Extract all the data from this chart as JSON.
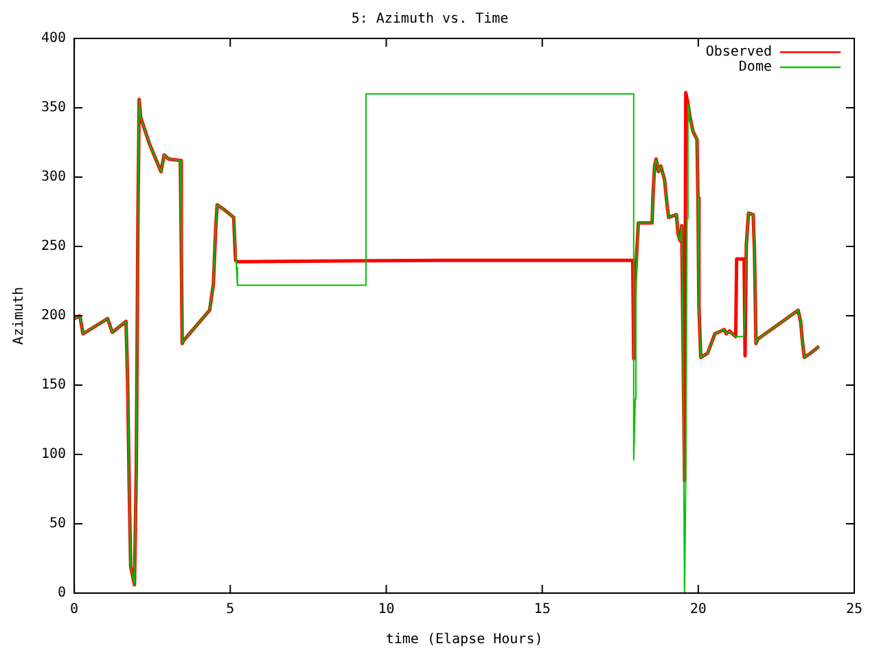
{
  "chart_data": {
    "type": "line",
    "title": "5: Azimuth vs. Time",
    "xlabel": "time (Elapse Hours)",
    "ylabel": "Azimuth",
    "xlim": [
      0,
      25
    ],
    "xticks": [
      0,
      5,
      10,
      15,
      20,
      25
    ],
    "ylim": [
      0,
      400
    ],
    "yticks": [
      0,
      50,
      100,
      150,
      200,
      250,
      300,
      350,
      400
    ],
    "grid": false,
    "legend": "top right",
    "marker": "none",
    "line_style": "solid",
    "series": [
      {
        "name": "Observed",
        "color": "#ff0000",
        "x": [
          0,
          0.18,
          0.28,
          1.07,
          1.22,
          1.66,
          1.71,
          1.77,
          1.81,
          1.93,
          1.99,
          2.04,
          2.08,
          2.13,
          2.41,
          2.78,
          2.88,
          3.03,
          3.4,
          3.43,
          3.46,
          3.5,
          4.34,
          4.46,
          4.53,
          4.58,
          4.78,
          5.11,
          5.17,
          5.23,
          11.8,
          17.9,
          17.93,
          17.98,
          18.08,
          18.52,
          18.55,
          18.6,
          18.65,
          18.72,
          18.8,
          18.92,
          19.0,
          19.05,
          19.3,
          19.35,
          19.42,
          19.47,
          19.5,
          19.56,
          19.6,
          19.67,
          19.72,
          19.83,
          19.96,
          19.99,
          20.02,
          20.08,
          20.3,
          20.53,
          20.83,
          20.9,
          21.0,
          21.2,
          21.23,
          21.47,
          21.5,
          21.54,
          21.61,
          21.76,
          21.8,
          21.85,
          21.9,
          23.2,
          23.28,
          23.35,
          23.4,
          23.6,
          23.87
        ],
        "values": [
          198,
          200,
          187,
          198,
          188,
          196,
          153,
          65,
          19,
          6,
          91,
          267,
          356,
          343,
          324,
          304,
          316,
          313,
          312,
          251,
          180,
          182,
          204,
          223,
          261,
          280,
          277,
          271,
          240,
          239,
          240,
          240,
          169,
          225,
          267,
          267,
          287,
          308,
          313,
          304,
          308,
          298,
          280,
          271,
          273,
          259,
          254,
          265,
          203,
          81,
          361,
          353,
          345,
          333,
          327,
          285,
          208,
          170,
          173,
          187,
          190,
          187,
          189,
          185,
          241,
          241,
          171,
          251,
          274,
          273,
          248,
          180,
          183,
          204,
          196,
          179,
          170,
          173,
          178
        ]
      },
      {
        "name": "Dome",
        "color": "#00c000",
        "x": [
          0,
          0.18,
          0.28,
          1.07,
          1.22,
          1.66,
          1.71,
          1.77,
          1.81,
          1.93,
          1.99,
          2.04,
          2.08,
          2.13,
          2.41,
          2.78,
          2.88,
          3.03,
          3.4,
          3.43,
          3.46,
          3.5,
          4.34,
          4.46,
          4.53,
          4.58,
          4.78,
          5.11,
          5.2,
          5.23,
          9.35,
          9.35,
          17.93,
          17.93,
          17.98,
          18.0,
          18.08,
          18.52,
          18.55,
          18.6,
          18.65,
          18.72,
          18.8,
          18.92,
          19.0,
          19.05,
          19.3,
          19.35,
          19.42,
          19.47,
          19.5,
          19.56,
          19.6,
          19.64,
          19.67,
          19.72,
          19.83,
          19.96,
          19.99,
          20.02,
          20.08,
          20.3,
          20.53,
          20.83,
          20.9,
          21.0,
          21.2,
          21.46,
          21.5,
          21.54,
          21.61,
          21.76,
          21.8,
          21.85,
          21.9,
          23.2,
          23.28,
          23.35,
          23.4,
          23.6,
          23.87
        ],
        "values": [
          198,
          200,
          187,
          198,
          188,
          196,
          153,
          66,
          19,
          6,
          91,
          267,
          356,
          343,
          324,
          304,
          316,
          313,
          312,
          251,
          180,
          182,
          204,
          223,
          261,
          280,
          277,
          271,
          235,
          222,
          222,
          360,
          360,
          96,
          140,
          224,
          267,
          267,
          287,
          308,
          313,
          304,
          308,
          298,
          280,
          271,
          273,
          259,
          254,
          265,
          203,
          0,
          83,
          270,
          353,
          345,
          333,
          327,
          285,
          208,
          170,
          173,
          187,
          190,
          187,
          189,
          185,
          185,
          208,
          251,
          274,
          273,
          248,
          180,
          183,
          204,
          196,
          179,
          170,
          173,
          178
        ]
      }
    ]
  }
}
